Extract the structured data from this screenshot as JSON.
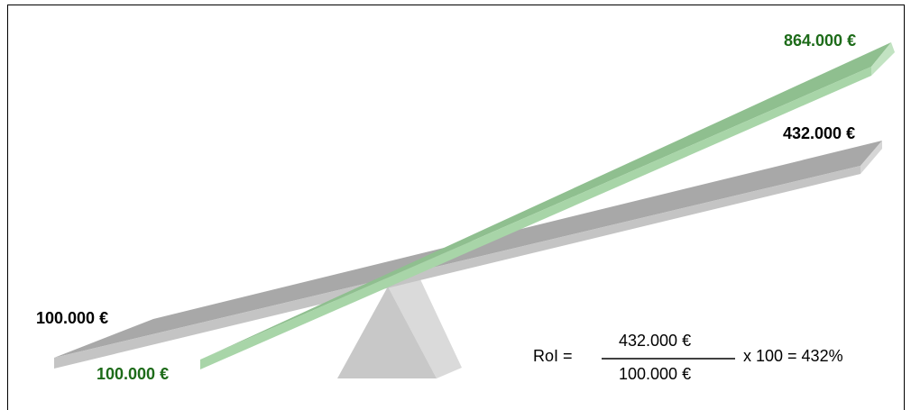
{
  "labels": {
    "gray_left": "100.000 €",
    "gray_right": "432.000 €",
    "green_left": "100.000 €",
    "green_right": "864.000 €"
  },
  "formula": {
    "prefix": "RoI =",
    "numerator": "432.000 €",
    "denominator": "100.000 €",
    "suffix": "x 100 = 432%"
  },
  "colors": {
    "gray_beam_top": "#a8a8a8",
    "gray_beam_front": "#c4c4c4",
    "gray_beam_end": "#d6d6d6",
    "green_beam_top": "#8fbf8f",
    "green_beam_front": "#a8d5a8",
    "green_beam_end": "#c2e3c2",
    "green_text": "#1d6b19",
    "fulcrum_front": "#c8c8c8",
    "fulcrum_side": "#dadada"
  }
}
